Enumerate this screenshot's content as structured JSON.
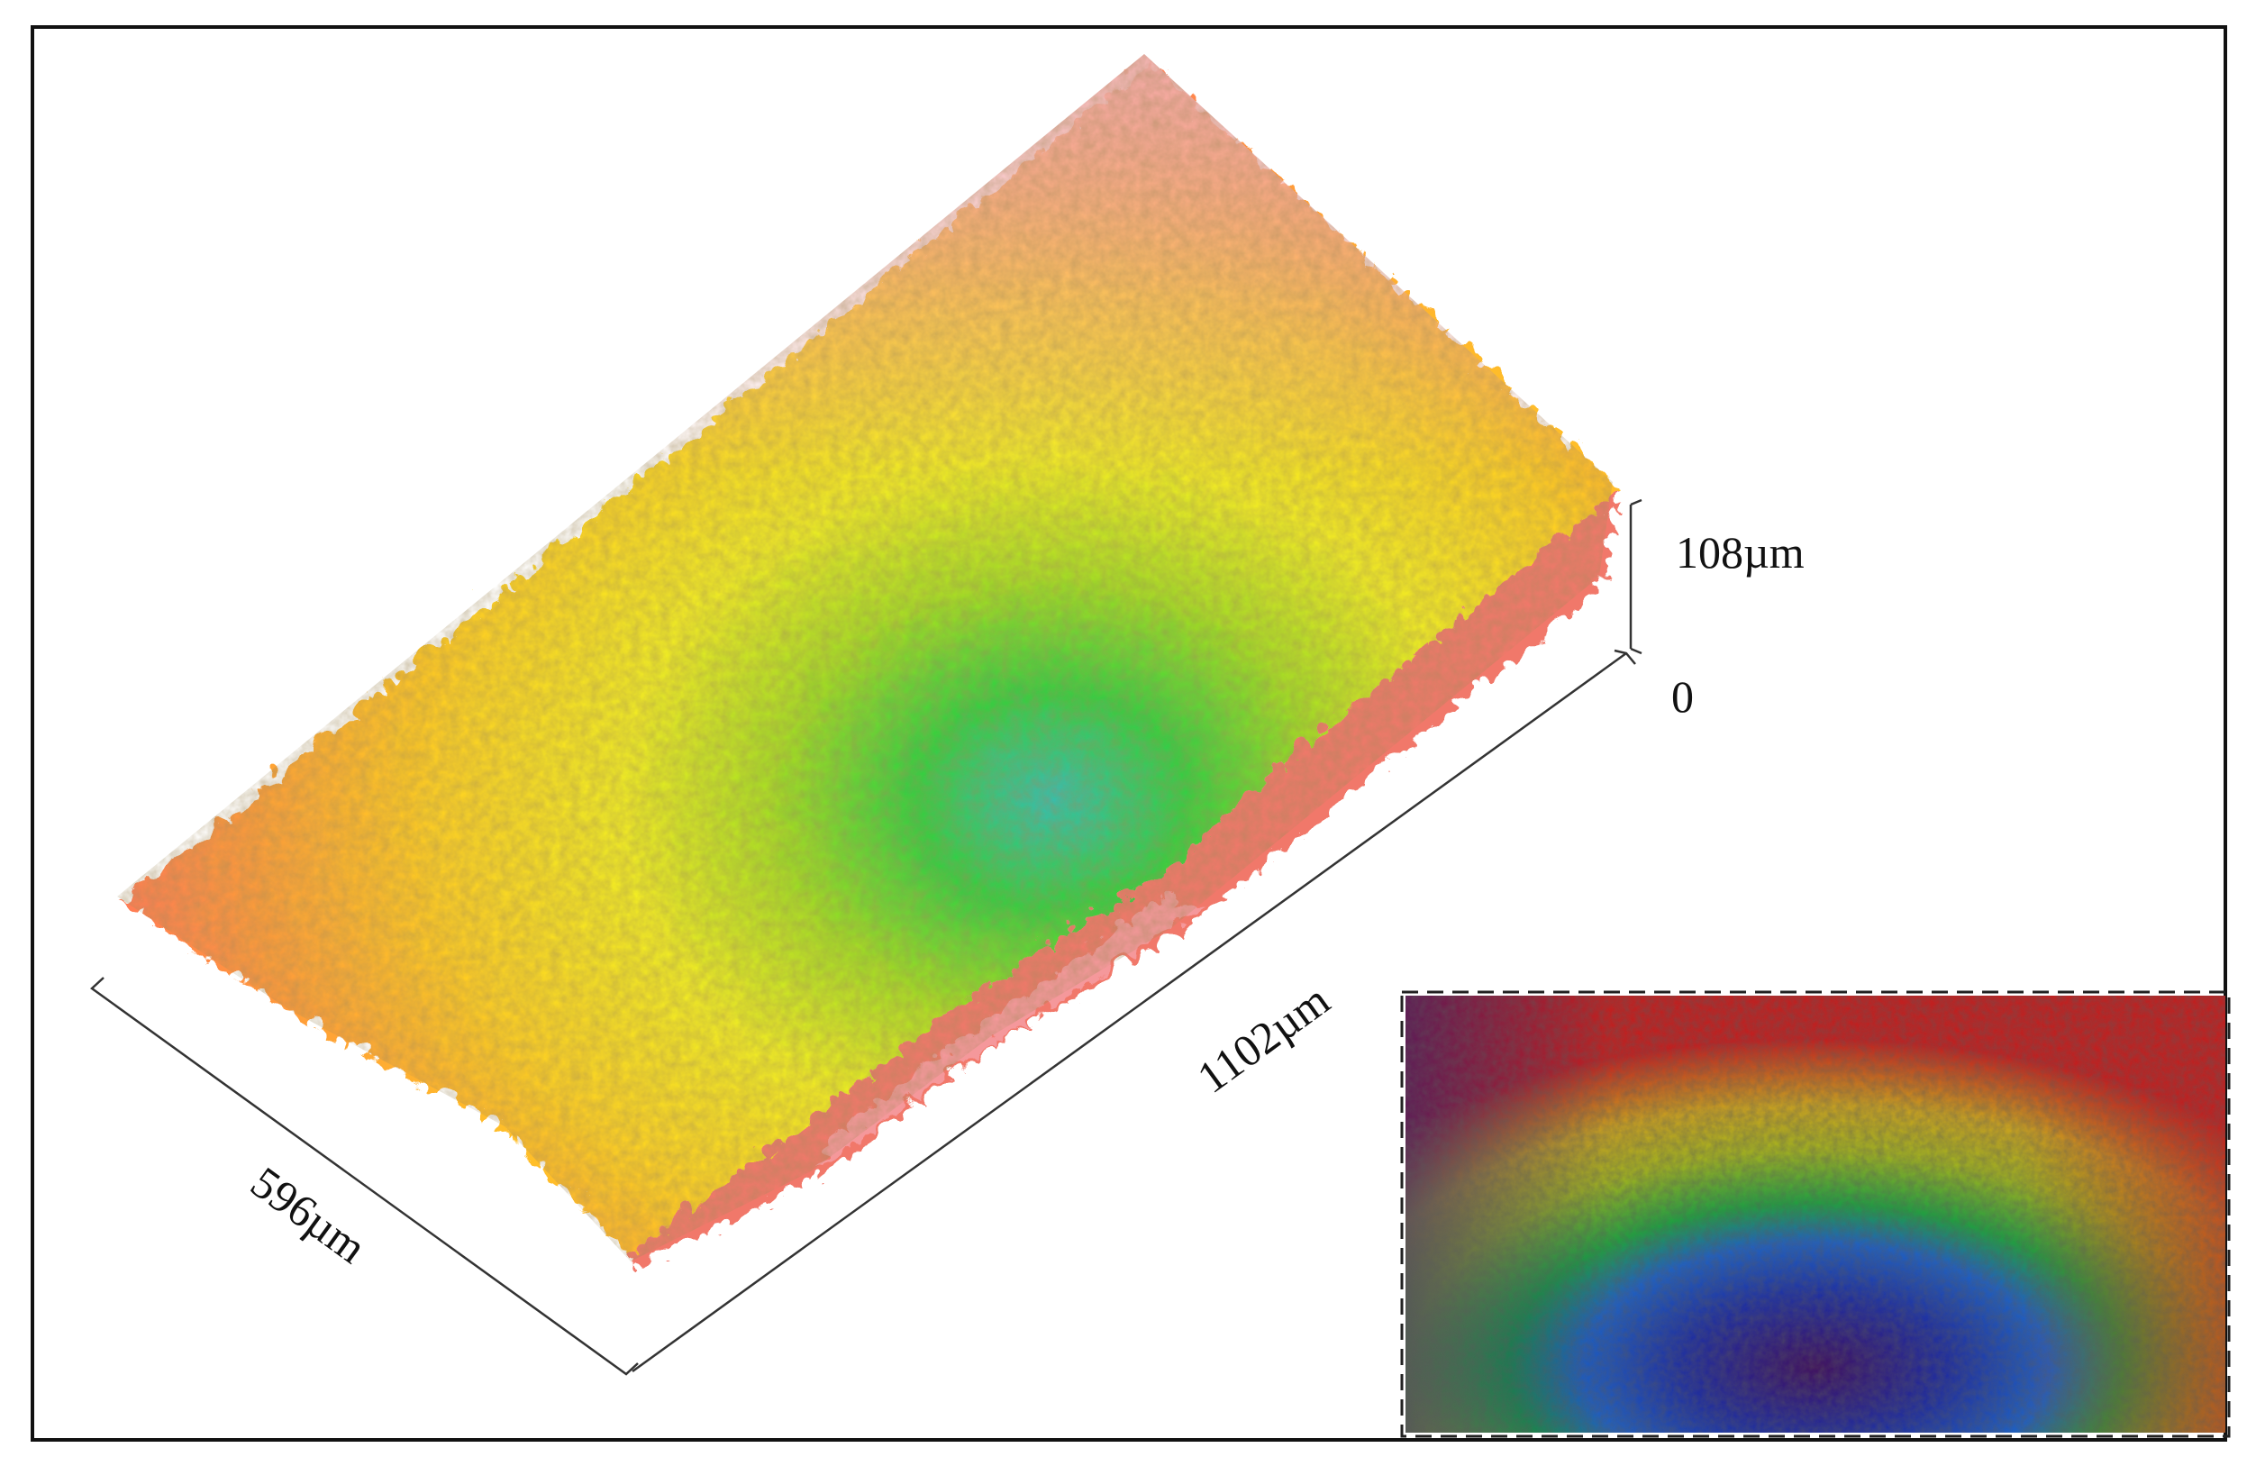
{
  "figure": {
    "labels": {
      "height_max": "108µm",
      "height_zero": "0",
      "length": "1102µm",
      "width": "596µm"
    },
    "surface_colors": [
      "#f8a8a8",
      "#ff9a3a",
      "#ffd020",
      "#f2ee20",
      "#a8e020",
      "#30d040",
      "#30c0b0"
    ],
    "inset_colors": [
      "#101880",
      "#2040c0",
      "#20a040",
      "#c8c020",
      "#e08020",
      "#c02020",
      "#401060"
    ]
  }
}
